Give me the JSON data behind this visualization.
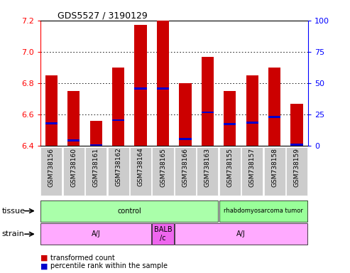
{
  "title": "GDS5527 / 3190129",
  "samples": [
    "GSM738156",
    "GSM738160",
    "GSM738161",
    "GSM738162",
    "GSM738164",
    "GSM738165",
    "GSM738166",
    "GSM738163",
    "GSM738155",
    "GSM738157",
    "GSM738158",
    "GSM738159"
  ],
  "bar_values": [
    6.85,
    6.75,
    6.56,
    6.9,
    7.17,
    7.2,
    6.8,
    6.97,
    6.75,
    6.85,
    6.9,
    6.67
  ],
  "bar_base": 6.4,
  "percentile_values": [
    6.545,
    6.435,
    6.405,
    6.565,
    6.765,
    6.765,
    6.445,
    6.615,
    6.54,
    6.55,
    6.585,
    6.41
  ],
  "ylim": [
    6.4,
    7.2
  ],
  "yticks_left": [
    6.4,
    6.6,
    6.8,
    7.0,
    7.2
  ],
  "yticks_right": [
    0,
    25,
    50,
    75,
    100
  ],
  "bar_color": "#cc0000",
  "percentile_color": "#0000cc",
  "tissue_groups": [
    {
      "label": "control",
      "start": 0,
      "end": 8,
      "color": "#aaffaa"
    },
    {
      "label": "rhabdomyosarcoma tumor",
      "start": 8,
      "end": 12,
      "color": "#99ff99"
    }
  ],
  "strain_groups": [
    {
      "label": "A/J",
      "start": 0,
      "end": 5,
      "color": "#ffaaff"
    },
    {
      "label": "BALB\n/c",
      "start": 5,
      "end": 6,
      "color": "#ee66ee"
    },
    {
      "label": "A/J",
      "start": 6,
      "end": 12,
      "color": "#ffaaff"
    }
  ],
  "tissue_label": "tissue",
  "strain_label": "strain",
  "legend_red": "transformed count",
  "legend_blue": "percentile rank within the sample",
  "legend_red_color": "#cc0000",
  "legend_blue_color": "#0000cc",
  "plot_bg": "#ffffff",
  "fig_bg": "#ffffff",
  "xticklabel_bg": "#dddddd"
}
